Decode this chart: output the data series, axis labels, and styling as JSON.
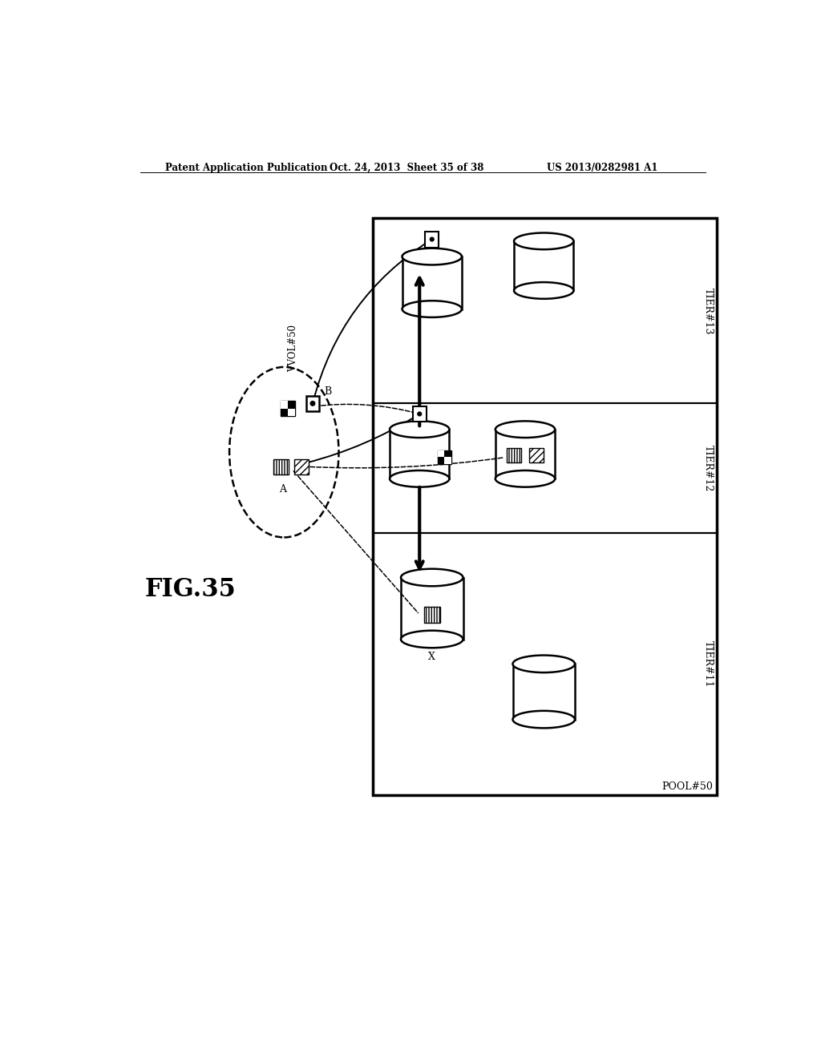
{
  "header_left": "Patent Application Publication",
  "header_center": "Oct. 24, 2013  Sheet 35 of 38",
  "header_right": "US 2013/0282981 A1",
  "fig_label": "FIG.35",
  "pool_label": "POOL#50",
  "vvol_label": "VVOL#50",
  "tier_labels": [
    "TIER#11",
    "TIER#12",
    "TIER#13"
  ],
  "bg_color": "#ffffff"
}
